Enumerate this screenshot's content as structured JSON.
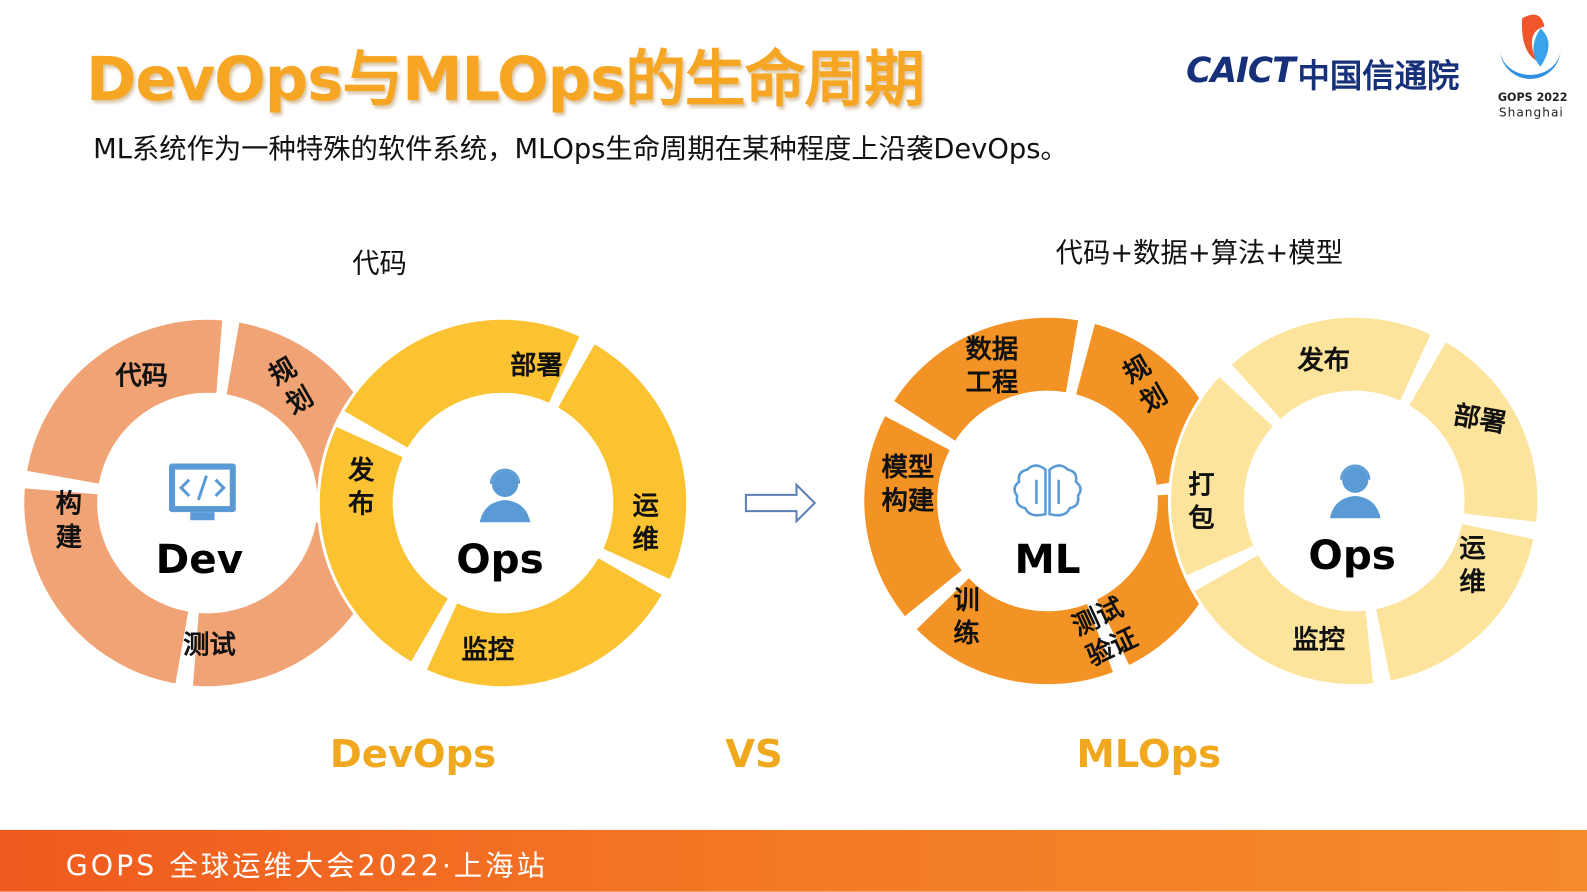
{
  "header": {
    "title": "DevOps与MLOps的生命周期",
    "subtitle": "ML系统作为一种特殊的软件系统，MLOps生命周期在某种程度上沿袭DevOps。",
    "logo_caict": "CAICT",
    "logo_caict_cn": "中国信通院",
    "logo_gops": "GOPS 2022",
    "logo_gops_city": "Shanghai"
  },
  "devops": {
    "heading": "代码",
    "caption": "DevOps",
    "dev_ring": {
      "center": "Dev",
      "icon": "code-monitor-icon",
      "color": "#F0A374",
      "segments": [
        "代码",
        "规划",
        "构建",
        "测试"
      ]
    },
    "ops_ring": {
      "center": "Ops",
      "icon": "operator-headset-icon",
      "color": "#FBC232",
      "segments": [
        "部署",
        "发布",
        "运维",
        "监控"
      ]
    }
  },
  "vs_label": "VS",
  "mlops": {
    "heading": "代码+数据+算法+模型",
    "caption": "MLOps",
    "ml_ring": {
      "center": "ML",
      "icon": "brain-icon",
      "color": "#F39325",
      "segments": [
        "数据工程",
        "规划",
        "模型构建",
        "训练",
        "测试验证"
      ]
    },
    "ops_ring": {
      "center": "Ops",
      "icon": "operator-headset-icon",
      "color": "#FDE49C",
      "segments": [
        "发布",
        "部署",
        "打包",
        "运维",
        "监控"
      ]
    }
  },
  "footer": {
    "text": "GOPS 全球运维大会2022·上海站"
  },
  "colors": {
    "title": "#F6A623",
    "caption": "#F0A81E",
    "footer": "#F47A26",
    "icon_blue": "#5B9BD5"
  }
}
